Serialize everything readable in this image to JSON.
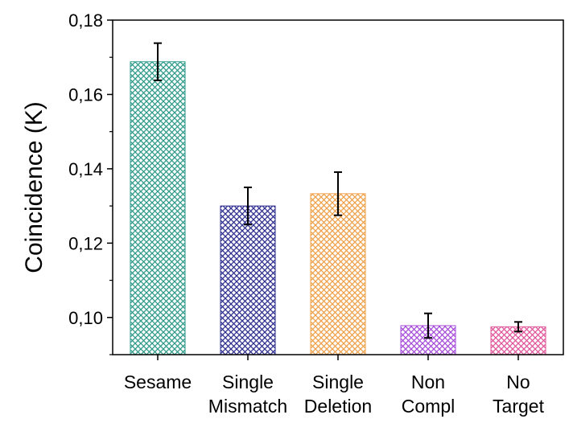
{
  "chart_data": {
    "type": "bar",
    "title": "",
    "xlabel": "",
    "ylabel": "Coincidence (K)",
    "ylim": [
      0.09,
      0.18
    ],
    "yticks": [
      0.1,
      0.12,
      0.14,
      0.16,
      0.18
    ],
    "ytick_labels": [
      "0,10",
      "0,12",
      "0,14",
      "0,16",
      "0,18"
    ],
    "grid": false,
    "categories": [
      [
        "Sesame"
      ],
      [
        "Single",
        "Mismatch"
      ],
      [
        "Single",
        "Deletion"
      ],
      [
        "Non",
        "Compl"
      ],
      [
        "No",
        "Target"
      ]
    ],
    "values": [
      0.1688,
      0.13,
      0.1333,
      0.0978,
      0.0975
    ],
    "errors": [
      0.005,
      0.005,
      0.0058,
      0.0033,
      0.0013
    ],
    "colors": [
      "#2e9a8a",
      "#2f2f8f",
      "#f0a04a",
      "#a64dd9",
      "#e0559a"
    ],
    "fill_pattern": "crosshatch"
  }
}
